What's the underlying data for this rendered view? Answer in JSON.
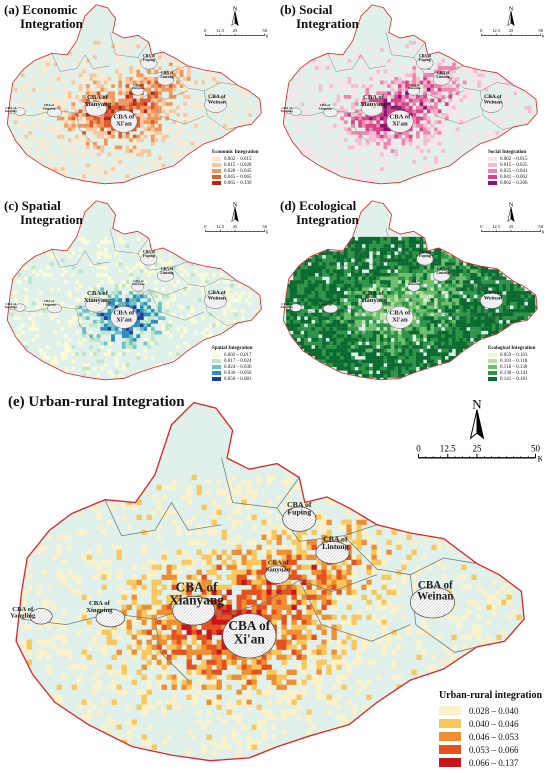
{
  "scale_bar": {
    "ticks": [
      "0",
      "12.5",
      "25",
      "50"
    ],
    "unit": "Km"
  },
  "north_label": "N",
  "panels": [
    {
      "title_line1": "(a) Economic",
      "title_line2": "Integration",
      "legend_title": "Economic Integration",
      "classes": [
        "0.002 – 0.015",
        "0.015 – 0.028",
        "0.028 – 0.045",
        "0.045 – 0.065",
        "0.065 – 0.130"
      ],
      "colors": [
        "#fde9cf",
        "#f9c79b",
        "#f2975c",
        "#df5c2c",
        "#b8241a"
      ]
    },
    {
      "title_line1": "(b) Social",
      "title_line2": "Integration",
      "legend_title": "Social Integration",
      "classes": [
        "0.002 – 0.015",
        "0.015 – 0.025",
        "0.025 – 0.041",
        "0.041 – 0.062",
        "0.062 – 0.206"
      ],
      "colors": [
        "#fbe1ea",
        "#f7bcd0",
        "#ef86ad",
        "#d8438a",
        "#8e1173"
      ]
    },
    {
      "title_line1": "(c) Spatial",
      "title_line2": "Integration",
      "legend_title": "Spatial Integration",
      "classes": [
        "0.002 – 0.017",
        "0.017 – 0.024",
        "0.024 – 0.036",
        "0.036 – 0.050",
        "0.050 – 0.081"
      ],
      "colors": [
        "#fbfbd6",
        "#bfe5c7",
        "#6cc2c6",
        "#2c8fbe",
        "#203f99"
      ]
    },
    {
      "title_line1": "(d) Ecological",
      "title_line2": "Integration",
      "legend_title": "Ecological Integration",
      "classes": [
        "0.059 – 0.103",
        "0.103 – 0.118",
        "0.118 – 0.130",
        "0.130 – 0.141",
        "0.141 – 0.181"
      ],
      "colors": [
        "#eef7d8",
        "#b8e09f",
        "#6cbf6d",
        "#2e9448",
        "#0a6a2f"
      ]
    },
    {
      "title_line1": "(e) Urban-rural Integration",
      "title_line2": "",
      "legend_title": "Urban-rural integration",
      "classes": [
        "0.028 – 0.040",
        "0.040 – 0.046",
        "0.046 – 0.053",
        "0.053 – 0.066",
        "0.066 – 0.137"
      ],
      "colors": [
        "#fcf1c8",
        "#f8c85c",
        "#f08f32",
        "#e5521f",
        "#c8141b"
      ]
    }
  ],
  "cba_labels": [
    {
      "line1": "CBA of",
      "line2": "Xi'an"
    },
    {
      "line1": "CBA of",
      "line2": "Xianyang"
    },
    {
      "line1": "CBA of",
      "line2": "Yangling"
    },
    {
      "line1": "CBA of",
      "line2": "Xingping"
    },
    {
      "line1": "CBA of",
      "line2": "Weinan"
    },
    {
      "line1": "CBA of",
      "line2": "Fuping"
    },
    {
      "line1": "CBA of",
      "line2": "Lintong"
    },
    {
      "line1": "CBA of",
      "line2": "Sanyuan"
    }
  ],
  "colors": {
    "region_fill": "#dff1ea",
    "outer_border": "#e0262a",
    "district_border": "#777777",
    "cba_hatch": "#9a9a9a"
  }
}
